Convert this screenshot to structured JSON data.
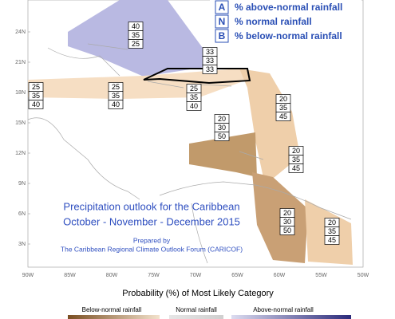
{
  "legend_key": [
    {
      "letter": "A",
      "label": "% above-normal rainfall"
    },
    {
      "letter": "N",
      "label": "% normal rainfall"
    },
    {
      "letter": "B",
      "label": "% below-normal rainfall"
    }
  ],
  "latitude_labels": [
    "24N",
    "21N",
    "18N",
    "15N",
    "12N",
    "9N",
    "6N",
    "3N"
  ],
  "longitude_labels": [
    "90W",
    "85W",
    "80W",
    "75W",
    "70W",
    "65W",
    "60W",
    "55W",
    "50W"
  ],
  "forecast_boxes": [
    {
      "values": [
        40,
        35,
        25
      ]
    },
    {
      "values": [
        33,
        33,
        33
      ]
    },
    {
      "values": [
        25,
        35,
        40
      ]
    },
    {
      "values": [
        25,
        35,
        40
      ]
    },
    {
      "values": [
        25,
        35,
        40
      ]
    },
    {
      "values": [
        20,
        30,
        50
      ]
    },
    {
      "values": [
        20,
        35,
        45
      ]
    },
    {
      "values": [
        20,
        35,
        45
      ]
    },
    {
      "values": [
        20,
        30,
        50
      ]
    },
    {
      "values": [
        20,
        35,
        45
      ]
    }
  ],
  "title": {
    "line1": "Precipitation outlook for the Caribbean",
    "line2": "October - November - December 2015"
  },
  "credit": {
    "line1": "Prepared by",
    "line2": "The Caribbean Regional Climate Outlook Forum (CARICOF)"
  },
  "color_legend": {
    "title": "Probability (%) of Most Likely Category",
    "below": "Below-normal rainfall",
    "normal": "Normal rainfall",
    "above": "Above-normal rainfall"
  }
}
